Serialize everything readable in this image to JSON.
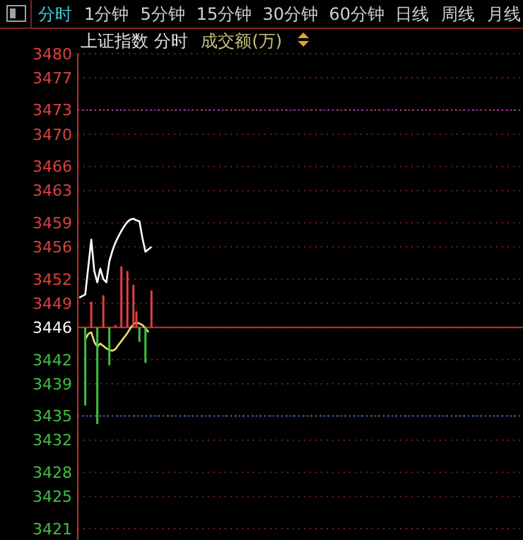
{
  "chart_data": {
    "type": "line",
    "title": "上证指数 分时",
    "subtitle": "成交额(万)",
    "annotations": [
      "分时",
      "1分钟",
      "5分钟",
      "15分钟",
      "30分钟",
      "60分钟",
      "日线",
      "周线",
      "月线"
    ],
    "categories": [
      null,
      null,
      null,
      null,
      null,
      null,
      null,
      null,
      null,
      null,
      null,
      null,
      null,
      null,
      null,
      null,
      null,
      null,
      null,
      null,
      null,
      null,
      null,
      null,
      null,
      null,
      null,
      null,
      null,
      null,
      null,
      null,
      null,
      null,
      null,
      null,
      null,
      null,
      null,
      null,
      null,
      null,
      null,
      null,
      null,
      null,
      null,
      null,
      null,
      null,
      null,
      null,
      null,
      null,
      null,
      null,
      null,
      null,
      null,
      null,
      null,
      null,
      null,
      null,
      null,
      null,
      null,
      null,
      null,
      null,
      null,
      null,
      null,
      null,
      null,
      null,
      null,
      null,
      null,
      null,
      null,
      null,
      null,
      null,
      null,
      null,
      null,
      null,
      null,
      null,
      null,
      null,
      null,
      null,
      null,
      null,
      null,
      null,
      null,
      null,
      null,
      null,
      null,
      null,
      null,
      null,
      null,
      null,
      null,
      null,
      null,
      null,
      null,
      null,
      null,
      null,
      null,
      null,
      null,
      null,
      null,
      null,
      null,
      null,
      null,
      null,
      null,
      null,
      null,
      null,
      null,
      null,
      null,
      null,
      null,
      null,
      null,
      null,
      null,
      null,
      null,
      null,
      null,
      null,
      null,
      null,
      null,
      null
    ],
    "ylim": [
      3421,
      3480
    ],
    "yticks": [
      3421,
      3425,
      3428,
      3432,
      3435,
      3439,
      3442,
      3446,
      3449,
      3452,
      3456,
      3459,
      3463,
      3466,
      3470,
      3473,
      3477,
      3480
    ],
    "tick_labels": "y",
    "grid": "y",
    "line_style": "solid",
    "marker": "none",
    "ref_lines": [
      {
        "axis": "y",
        "value": 3446,
        "color": "#c83030",
        "line_style": "solid"
      },
      {
        "axis": "y",
        "value": 3473,
        "color": "#b040b0",
        "line_style": "dotted"
      },
      {
        "axis": "y",
        "value": 3435,
        "color": "#3070e0",
        "line_style": "dotted"
      }
    ],
    "series": [
      {
        "color": "#ffffff",
        "values": [
          3449.7,
          3449.9,
          3450.1,
          3453.5,
          3456.9,
          3453,
          3451.6,
          3453.3,
          3452,
          3451.6,
          3454.2,
          3455.5,
          3456.5,
          3457.3,
          3458.0,
          3458.6,
          3459.1,
          3459.4,
          3459.5,
          3459.3,
          3459.2,
          3457.1,
          3455.4,
          3455.7,
          3456.0,
          null,
          null,
          null,
          null,
          null,
          null,
          null,
          null,
          null,
          null,
          null,
          null,
          null,
          null,
          null,
          null,
          null,
          null,
          null,
          null,
          null,
          null,
          null,
          null,
          null,
          null,
          null,
          null,
          null,
          null,
          null,
          null,
          null,
          null,
          null,
          null,
          null,
          null,
          null,
          null,
          null,
          null,
          null,
          null,
          null,
          null,
          null,
          null,
          null,
          null,
          null,
          null,
          null,
          null,
          null,
          null,
          null,
          null,
          null,
          null,
          null,
          null,
          null,
          null,
          null,
          null,
          null,
          null,
          null,
          null,
          null,
          null,
          null,
          null,
          null,
          null,
          null,
          null,
          null,
          null,
          null,
          null,
          null,
          null,
          null,
          null,
          null,
          null,
          null,
          null,
          null,
          null,
          null,
          null,
          null,
          null,
          null,
          null,
          null,
          null,
          null,
          null,
          null,
          null,
          null,
          null,
          null,
          null,
          null,
          null,
          null,
          null,
          null,
          null,
          null,
          null,
          null,
          null,
          null,
          null,
          null,
          null,
          null
        ]
      },
      {
        "type": "line",
        "color": "#e8e070",
        "values": [
          null,
          null,
          3444.5,
          3445.2,
          3445.4,
          3444.2,
          3443.6,
          3444.0,
          3443.7,
          3443.4,
          3443.2,
          3443.1,
          3443.3,
          3443.8,
          3444.3,
          3444.8,
          3445.3,
          3445.9,
          3446.4,
          3446.6,
          3446.5,
          3446.3,
          3445.9,
          3445.4,
          null,
          null,
          null,
          null,
          null,
          null,
          null,
          null,
          null,
          null,
          null,
          null,
          null,
          null,
          null,
          null,
          null,
          null,
          null,
          null,
          null,
          null,
          null,
          null,
          null,
          null,
          null,
          null,
          null,
          null,
          null,
          null,
          null,
          null,
          null,
          null,
          null,
          null,
          null,
          null,
          null,
          null,
          null,
          null,
          null,
          null,
          null,
          null,
          null,
          null,
          null,
          null,
          null,
          null,
          null,
          null,
          null,
          null,
          null,
          null,
          null,
          null,
          null,
          null,
          null,
          null,
          null,
          null,
          null,
          null,
          null,
          null,
          null,
          null,
          null,
          null,
          null,
          null,
          null,
          null,
          null,
          null,
          null,
          null,
          null,
          null,
          null,
          null,
          null,
          null,
          null,
          null,
          null,
          null,
          null,
          null,
          null,
          null,
          null,
          null,
          null,
          null,
          null,
          null,
          null,
          null,
          null,
          null,
          null,
          null,
          null,
          null,
          null,
          null,
          null,
          null,
          null,
          null,
          null,
          null,
          null,
          null,
          null,
          null
        ]
      },
      {
        "type": "bar",
        "values": [
          null,
          null,
          -9.7,
          null,
          3.2,
          null,
          -12.0,
          null,
          4.0,
          null,
          -4.7,
          null,
          0.3,
          null,
          7.6,
          null,
          7.0,
          null,
          5.3,
          2.0,
          -1.8,
          null,
          -4.4,
          null,
          4.6,
          null,
          null,
          null,
          null,
          null,
          null,
          null,
          null,
          null,
          null,
          null,
          null,
          null,
          null,
          null,
          null,
          null,
          null,
          null,
          null,
          null,
          null,
          null,
          null,
          null,
          null,
          null,
          null,
          null,
          null,
          null,
          null,
          null,
          null,
          null,
          null,
          null,
          null,
          null,
          null,
          null,
          null,
          null,
          null,
          null,
          null,
          null,
          null,
          null,
          null,
          null,
          null,
          null,
          null,
          null,
          null,
          null,
          null,
          null,
          null,
          null,
          null,
          null,
          null,
          null,
          null,
          null,
          null,
          null,
          null,
          null,
          null,
          null,
          null,
          null,
          null,
          null,
          null,
          null,
          null,
          null,
          null,
          null,
          null,
          null,
          null,
          null,
          null,
          null,
          null,
          null,
          null,
          null,
          null,
          null,
          null,
          null,
          null,
          null,
          null,
          null,
          null,
          null,
          null,
          null,
          null,
          null,
          null,
          null,
          null,
          null,
          null,
          null,
          null,
          null,
          null,
          null,
          null,
          null,
          null,
          null,
          null,
          null
        ],
        "base": [
          null,
          null,
          3446,
          null,
          3446,
          null,
          3446,
          null,
          3446,
          null,
          3446,
          null,
          3446,
          null,
          3446,
          null,
          3446,
          null,
          3446,
          3446,
          3446,
          null,
          3446,
          null,
          3446,
          null,
          null,
          null,
          null,
          null,
          null,
          null,
          null,
          null,
          null,
          null,
          null,
          null,
          null,
          null,
          null,
          null,
          null,
          null,
          null,
          null,
          null,
          null,
          null,
          null,
          null,
          null,
          null,
          null,
          null,
          null,
          null,
          null,
          null,
          null,
          null,
          null,
          null,
          null,
          null,
          null,
          null,
          null,
          null,
          null,
          null,
          null,
          null,
          null,
          null,
          null,
          null,
          null,
          null,
          null,
          null,
          null,
          null,
          null,
          null,
          null,
          null,
          null,
          null,
          null,
          null,
          null,
          null,
          null,
          null,
          null,
          null,
          null,
          null,
          null,
          null,
          null,
          null,
          null,
          null,
          null,
          null,
          null,
          null,
          null,
          null,
          null,
          null,
          null,
          null,
          null,
          null,
          null,
          null,
          null,
          null,
          null,
          null,
          null,
          null,
          null,
          null,
          null,
          null,
          null,
          null,
          null,
          null,
          null,
          null,
          null,
          null,
          null,
          null,
          null,
          null,
          null,
          null,
          null,
          null,
          null,
          null,
          null
        ],
        "colors": [
          null,
          null,
          "#40c040",
          null,
          "#e04040",
          null,
          "#40c040",
          null,
          "#e04040",
          null,
          "#40c040",
          null,
          "#e04040",
          null,
          "#e04040",
          null,
          "#e04040",
          null,
          "#e04040",
          "#e04040",
          "#40c040",
          null,
          "#40c040",
          null,
          "#e04040",
          null,
          null,
          null,
          null,
          null,
          null,
          null,
          null,
          null,
          null,
          null,
          null,
          null,
          null,
          null,
          null,
          null,
          null,
          null,
          null,
          null,
          null,
          null,
          null,
          null,
          null,
          null,
          null,
          null,
          null,
          null,
          null,
          null,
          null,
          null,
          null,
          null,
          null,
          null,
          null,
          null,
          null,
          null,
          null,
          null,
          null,
          null,
          null,
          null,
          null,
          null,
          null,
          null,
          null,
          null,
          null,
          null,
          null,
          null,
          null,
          null,
          null,
          null,
          null,
          null,
          null,
          null,
          null,
          null,
          null,
          null,
          null,
          null,
          null,
          null,
          null,
          null,
          null,
          null,
          null,
          null,
          null,
          null,
          null,
          null,
          null,
          null,
          null,
          null,
          null,
          null,
          null,
          null,
          null,
          null,
          null,
          null,
          null,
          null,
          null,
          null,
          null,
          null,
          null,
          null,
          null,
          null,
          null,
          null,
          null,
          null,
          null,
          null,
          null,
          null,
          null,
          null,
          null,
          null,
          null,
          null,
          null,
          null
        ]
      }
    ]
  }
}
